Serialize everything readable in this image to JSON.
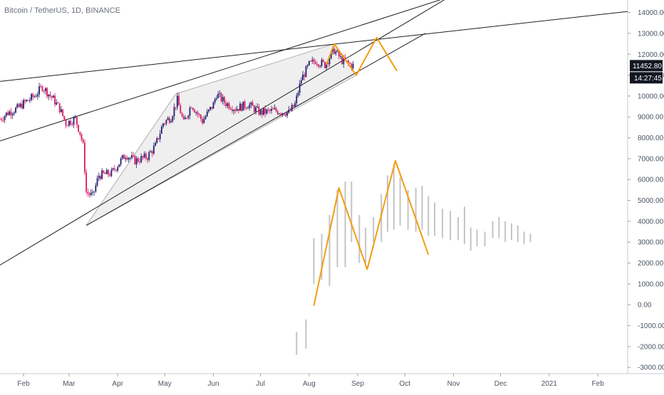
{
  "header": {
    "symbol_title": "Bitcoin / TetherUS, 1D, BINANCE"
  },
  "price_badges": {
    "last_price": "11452.80",
    "countdown": "14:27:45"
  },
  "colors": {
    "up_candle": "#1e1e6e",
    "down_candle": "#d81b60",
    "trendline": "#1f1f1f",
    "wedge_line": "#9e9e9e",
    "wedge_fill": "#e8e8e8",
    "projection": "#f29d12",
    "ghost_bars": "#c4c4c4",
    "badge_bg": "#131722"
  },
  "chart_data": {
    "type": "candlestick",
    "symbol": "Bitcoin / TetherUS",
    "interval": "1D",
    "exchange": "BINANCE",
    "xaxis": {
      "range": [
        "2020-01-17",
        "2021-02-20"
      ],
      "ticks": [
        {
          "label": "Feb",
          "date": "2020-02-01"
        },
        {
          "label": "Mar",
          "date": "2020-03-01"
        },
        {
          "label": "Apr",
          "date": "2020-04-01"
        },
        {
          "label": "May",
          "date": "2020-05-01"
        },
        {
          "label": "Jun",
          "date": "2020-06-01"
        },
        {
          "label": "Jul",
          "date": "2020-07-01"
        },
        {
          "label": "Aug",
          "date": "2020-08-01"
        },
        {
          "label": "Sep",
          "date": "2020-09-01"
        },
        {
          "label": "Oct",
          "date": "2020-10-01"
        },
        {
          "label": "Nov",
          "date": "2020-11-01"
        },
        {
          "label": "Dec",
          "date": "2020-12-01"
        },
        {
          "label": "2021",
          "date": "2021-01-01"
        },
        {
          "label": "Feb",
          "date": "2021-02-01"
        }
      ]
    },
    "yaxis": {
      "range": [
        -3300,
        14600
      ],
      "ticks": [
        "14000.00",
        "13000.00",
        "12000.00",
        "11000.00",
        "10000.00",
        "9000.00",
        "8000.00",
        "7000.00",
        "6000.00",
        "5000.00",
        "4000.00",
        "3000.00",
        "2000.00",
        "1000.00",
        "0.00",
        "-1000.00",
        "-2000.00",
        "-3000.00"
      ]
    },
    "last_price": 11452.8,
    "price_path": [
      [
        "2020-01-17",
        8900
      ],
      [
        "2020-01-22",
        9200
      ],
      [
        "2020-01-28",
        9400
      ],
      [
        "2020-02-02",
        9700
      ],
      [
        "2020-02-08",
        10000
      ],
      [
        "2020-02-13",
        10450
      ],
      [
        "2020-02-17",
        10100
      ],
      [
        "2020-02-20",
        9850
      ],
      [
        "2020-02-24",
        9400
      ],
      [
        "2020-02-28",
        8700
      ],
      [
        "2020-03-05",
        8900
      ],
      [
        "2020-03-08",
        8250
      ],
      [
        "2020-03-10",
        7600
      ],
      [
        "2020-03-12",
        5400
      ],
      [
        "2020-03-16",
        5200
      ],
      [
        "2020-03-20",
        6200
      ],
      [
        "2020-03-28",
        6300
      ],
      [
        "2020-04-06",
        7200
      ],
      [
        "2020-04-12",
        6900
      ],
      [
        "2020-04-20",
        7100
      ],
      [
        "2020-04-25",
        7600
      ],
      [
        "2020-04-30",
        8700
      ],
      [
        "2020-05-05",
        9000
      ],
      [
        "2020-05-09",
        9800
      ],
      [
        "2020-05-13",
        8700
      ],
      [
        "2020-05-18",
        9600
      ],
      [
        "2020-05-25",
        8800
      ],
      [
        "2020-06-01",
        9600
      ],
      [
        "2020-06-03",
        10100
      ],
      [
        "2020-06-08",
        9700
      ],
      [
        "2020-06-15",
        9400
      ],
      [
        "2020-06-23",
        9600
      ],
      [
        "2020-07-01",
        9200
      ],
      [
        "2020-07-10",
        9300
      ],
      [
        "2020-07-19",
        9200
      ],
      [
        "2020-07-23",
        9600
      ],
      [
        "2020-07-27",
        10800
      ],
      [
        "2020-08-01",
        11500
      ],
      [
        "2020-08-05",
        11700
      ],
      [
        "2020-08-11",
        11500
      ],
      [
        "2020-08-17",
        12200
      ],
      [
        "2020-08-22",
        11700
      ],
      [
        "2020-08-29",
        11450
      ]
    ],
    "trendlines": [
      {
        "from": [
          "2020-01-17",
          10700
        ],
        "to": [
          "2021-02-20",
          14050
        ]
      },
      {
        "from": [
          "2020-01-17",
          7850
        ],
        "to": [
          "2020-11-11",
          15050
        ]
      },
      {
        "from": [
          "2020-01-17",
          1900
        ],
        "to": [
          "2020-11-05",
          15050
        ]
      },
      {
        "from": [
          "2020-03-12",
          3800
        ],
        "to": [
          "2020-10-14",
          13000
        ]
      }
    ],
    "wedge": [
      [
        "2020-03-12",
        3800
      ],
      [
        "2020-05-08",
        10100
      ],
      [
        "2020-08-17",
        12500
      ],
      [
        "2020-08-31",
        11000
      ]
    ],
    "projection_top": [
      [
        "2020-08-12",
        11500
      ],
      [
        "2020-08-17",
        12500
      ],
      [
        "2020-08-31",
        11000
      ],
      [
        "2020-09-13",
        12800
      ],
      [
        "2020-09-26",
        11200
      ]
    ],
    "projection_bottom": [
      [
        "2020-08-04",
        -50
      ],
      [
        "2020-08-20",
        5600
      ],
      [
        "2020-09-07",
        1700
      ],
      [
        "2020-09-25",
        6900
      ],
      [
        "2020-10-16",
        2400
      ]
    ],
    "ghost_bars": [
      {
        "x": "2020-07-24",
        "low": -2400,
        "high": -1300
      },
      {
        "x": "2020-07-30",
        "low": -2100,
        "high": -700
      },
      {
        "x": "2020-08-04",
        "low": 1000,
        "high": 3200
      },
      {
        "x": "2020-08-09",
        "low": 1200,
        "high": 3400
      },
      {
        "x": "2020-08-14",
        "low": 900,
        "high": 4300
      },
      {
        "x": "2020-08-19",
        "low": 1800,
        "high": 5500
      },
      {
        "x": "2020-08-24",
        "low": 1800,
        "high": 5900
      },
      {
        "x": "2020-08-28",
        "low": 3000,
        "high": 5900
      },
      {
        "x": "2020-09-02",
        "low": 2000,
        "high": 4300
      },
      {
        "x": "2020-09-06",
        "low": 2000,
        "high": 3700
      },
      {
        "x": "2020-09-11",
        "low": 3000,
        "high": 4200
      },
      {
        "x": "2020-09-16",
        "low": 3000,
        "high": 5300
      },
      {
        "x": "2020-09-20",
        "low": 3500,
        "high": 6200
      },
      {
        "x": "2020-09-24",
        "low": 3600,
        "high": 6700
      },
      {
        "x": "2020-09-28",
        "low": 3800,
        "high": 6100
      },
      {
        "x": "2020-10-03",
        "low": 3600,
        "high": 5500
      },
      {
        "x": "2020-10-08",
        "low": 3500,
        "high": 5600
      },
      {
        "x": "2020-10-12",
        "low": 3600,
        "high": 5700
      },
      {
        "x": "2020-10-16",
        "low": 3300,
        "high": 5200
      },
      {
        "x": "2020-10-20",
        "low": 3300,
        "high": 4900
      },
      {
        "x": "2020-10-25",
        "low": 3200,
        "high": 4600
      },
      {
        "x": "2020-10-30",
        "low": 3100,
        "high": 4500
      },
      {
        "x": "2020-11-04",
        "low": 3100,
        "high": 4200
      },
      {
        "x": "2020-11-08",
        "low": 2900,
        "high": 4700
      },
      {
        "x": "2020-11-12",
        "low": 2600,
        "high": 3700
      },
      {
        "x": "2020-11-16",
        "low": 2800,
        "high": 3600
      },
      {
        "x": "2020-11-21",
        "low": 2800,
        "high": 3500
      },
      {
        "x": "2020-11-26",
        "low": 3200,
        "high": 4000
      },
      {
        "x": "2020-11-30",
        "low": 3200,
        "high": 4200
      },
      {
        "x": "2020-12-04",
        "low": 3000,
        "high": 4000
      },
      {
        "x": "2020-12-08",
        "low": 3100,
        "high": 3900
      },
      {
        "x": "2020-12-12",
        "low": 3000,
        "high": 3800
      },
      {
        "x": "2020-12-16",
        "low": 2900,
        "high": 3500
      },
      {
        "x": "2020-12-20",
        "low": 3000,
        "high": 3400
      }
    ]
  }
}
